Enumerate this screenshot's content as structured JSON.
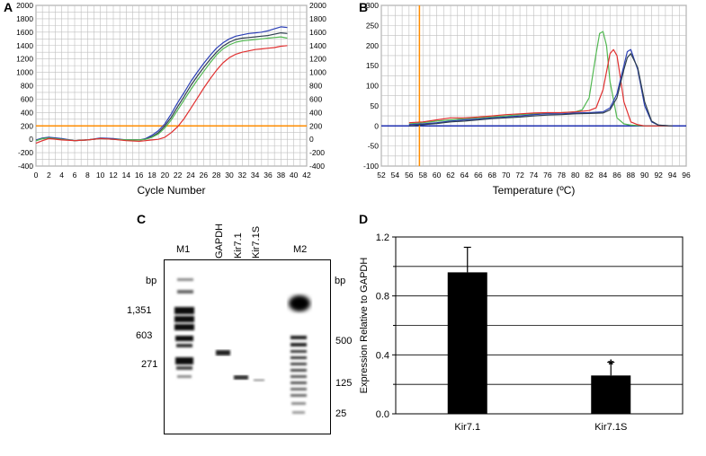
{
  "panels": {
    "a": {
      "label": "A"
    },
    "b": {
      "label": "B"
    },
    "c": {
      "label": "C"
    },
    "d": {
      "label": "D"
    }
  },
  "chart_data": [
    {
      "id": "A",
      "type": "line",
      "xlabel": "Cycle Number",
      "ylabel": "",
      "xlim": [
        0,
        42
      ],
      "ylim": [
        -400,
        2000
      ],
      "xticks": [
        0,
        2,
        4,
        6,
        8,
        10,
        12,
        14,
        16,
        18,
        20,
        22,
        24,
        26,
        28,
        30,
        32,
        34,
        36,
        38,
        40,
        42
      ],
      "yticks": [
        -400,
        -200,
        0,
        200,
        400,
        600,
        800,
        1000,
        1200,
        1400,
        1600,
        1800,
        2000
      ],
      "threshold": 200,
      "grid": true,
      "colors": {
        "threshold": "#ff8c00",
        "blue": "#2b3fb5",
        "dark": "#2e3f4f",
        "green": "#52b852",
        "red": "#e03030",
        "grid": "#bfbfbf"
      },
      "series": [
        {
          "color": "blue",
          "x": [
            0,
            1,
            2,
            4,
            6,
            8,
            10,
            12,
            14,
            16,
            17,
            18,
            19,
            20,
            21,
            22,
            23,
            24,
            25,
            26,
            27,
            28,
            29,
            30,
            31,
            32,
            33,
            34,
            35,
            36,
            37,
            38,
            39
          ],
          "y": [
            -10,
            20,
            30,
            10,
            -20,
            -10,
            20,
            10,
            -10,
            -10,
            10,
            60,
            130,
            230,
            380,
            550,
            700,
            860,
            1000,
            1130,
            1250,
            1360,
            1440,
            1500,
            1540,
            1560,
            1580,
            1590,
            1600,
            1620,
            1650,
            1680,
            1670
          ]
        },
        {
          "color": "dark",
          "x": [
            0,
            1,
            2,
            4,
            6,
            8,
            10,
            12,
            14,
            16,
            17,
            18,
            19,
            20,
            21,
            22,
            23,
            24,
            25,
            26,
            27,
            28,
            29,
            30,
            31,
            32,
            33,
            34,
            35,
            36,
            37,
            38,
            39
          ],
          "y": [
            -20,
            10,
            20,
            0,
            -20,
            -10,
            10,
            0,
            -10,
            -10,
            0,
            40,
            100,
            200,
            330,
            490,
            640,
            800,
            940,
            1070,
            1190,
            1300,
            1390,
            1450,
            1490,
            1510,
            1520,
            1530,
            1540,
            1550,
            1570,
            1590,
            1580
          ]
        },
        {
          "color": "green",
          "x": [
            0,
            1,
            2,
            4,
            6,
            8,
            10,
            12,
            14,
            16,
            17,
            18,
            19,
            20,
            21,
            22,
            23,
            24,
            25,
            26,
            27,
            28,
            29,
            30,
            31,
            32,
            33,
            34,
            35,
            36,
            37,
            38,
            39
          ],
          "y": [
            -20,
            10,
            20,
            0,
            -20,
            -10,
            10,
            0,
            -10,
            -10,
            0,
            30,
            80,
            170,
            290,
            440,
            590,
            740,
            880,
            1010,
            1140,
            1260,
            1350,
            1410,
            1450,
            1470,
            1480,
            1490,
            1500,
            1510,
            1520,
            1530,
            1510
          ]
        },
        {
          "color": "red",
          "x": [
            0,
            1,
            2,
            4,
            6,
            8,
            10,
            12,
            14,
            16,
            17,
            18,
            19,
            20,
            21,
            22,
            23,
            24,
            25,
            26,
            27,
            28,
            29,
            30,
            31,
            32,
            33,
            34,
            35,
            36,
            37,
            38,
            39
          ],
          "y": [
            -60,
            -20,
            10,
            -10,
            -20,
            -10,
            10,
            0,
            -20,
            -30,
            -20,
            -10,
            0,
            30,
            100,
            190,
            310,
            460,
            610,
            760,
            900,
            1030,
            1140,
            1220,
            1270,
            1300,
            1320,
            1340,
            1350,
            1360,
            1370,
            1390,
            1400
          ]
        }
      ]
    },
    {
      "id": "B",
      "type": "line",
      "xlabel": "Temperature (ºC)",
      "ylabel": "",
      "xlim": [
        52,
        96
      ],
      "ylim": [
        -100,
        300
      ],
      "xticks": [
        52,
        54,
        56,
        58,
        60,
        62,
        64,
        66,
        68,
        70,
        72,
        74,
        76,
        78,
        80,
        82,
        84,
        86,
        88,
        90,
        92,
        94,
        96
      ],
      "yticks": [
        -100,
        -50,
        0,
        50,
        100,
        150,
        200,
        250,
        300
      ],
      "vertical_line": 57.5,
      "baseline": 0,
      "grid": true,
      "colors": {
        "vline": "#ff8c00",
        "baseline": "#1f2fb0",
        "blue": "#2b3fb5",
        "dark": "#2e3f4f",
        "green": "#52b852",
        "red": "#e03030",
        "grid": "#bfbfbf"
      },
      "series": [
        {
          "color": "green",
          "x": [
            56,
            58,
            60,
            62,
            64,
            66,
            68,
            70,
            72,
            74,
            76,
            78,
            80,
            81,
            82,
            83,
            83.5,
            84,
            84.5,
            85,
            86,
            87,
            88,
            90,
            94
          ],
          "y": [
            5,
            8,
            12,
            15,
            18,
            20,
            22,
            25,
            28,
            30,
            32,
            33,
            35,
            40,
            70,
            180,
            230,
            235,
            200,
            110,
            20,
            5,
            2,
            0,
            0
          ]
        },
        {
          "color": "red",
          "x": [
            56,
            58,
            60,
            62,
            64,
            66,
            68,
            70,
            72,
            74,
            76,
            78,
            80,
            82,
            83,
            84,
            85,
            85.5,
            86,
            86.5,
            87,
            88,
            89,
            90,
            94
          ],
          "y": [
            8,
            10,
            15,
            20,
            20,
            22,
            25,
            28,
            30,
            32,
            33,
            33,
            35,
            38,
            45,
            90,
            180,
            190,
            175,
            120,
            60,
            10,
            3,
            0,
            0
          ]
        },
        {
          "color": "blue",
          "x": [
            56,
            58,
            60,
            62,
            64,
            66,
            68,
            70,
            72,
            74,
            76,
            78,
            80,
            82,
            84,
            85,
            86,
            87,
            87.5,
            88,
            89,
            90,
            91,
            92,
            94
          ],
          "y": [
            3,
            5,
            8,
            12,
            15,
            17,
            20,
            22,
            25,
            28,
            30,
            30,
            32,
            33,
            35,
            45,
            80,
            150,
            185,
            190,
            140,
            50,
            10,
            2,
            0
          ]
        },
        {
          "color": "dark",
          "x": [
            56,
            58,
            60,
            62,
            64,
            66,
            68,
            70,
            72,
            74,
            76,
            78,
            80,
            82,
            84,
            85,
            86,
            87,
            87.5,
            88,
            89,
            90,
            91,
            92,
            94
          ],
          "y": [
            0,
            3,
            6,
            10,
            12,
            15,
            18,
            20,
            22,
            25,
            27,
            28,
            30,
            31,
            32,
            40,
            70,
            140,
            170,
            180,
            145,
            60,
            12,
            2,
            0
          ]
        }
      ]
    },
    {
      "id": "D",
      "type": "bar",
      "categories": [
        "Kir7.1",
        "Kir7.1S"
      ],
      "values": [
        0.96,
        0.26
      ],
      "errors": [
        0.17,
        0.09
      ],
      "ylabel": "Expression Relative to GAPDH",
      "ylim": [
        0,
        1.2
      ],
      "yticks": [
        "0.0",
        "0.4",
        "0.8",
        "1.2"
      ],
      "significance": "*",
      "grid": true,
      "colors": {
        "bar": "#000000"
      }
    }
  ],
  "gel": {
    "lanes": [
      "M1",
      "GAPDH",
      "Kir7.1",
      "Kir7.1S",
      "M2"
    ],
    "bp_label_left": "bp",
    "bp_label_right": "bp",
    "left_markers": [
      "1,351",
      "603",
      "271"
    ],
    "right_markers": [
      "500",
      "125",
      "25"
    ]
  }
}
